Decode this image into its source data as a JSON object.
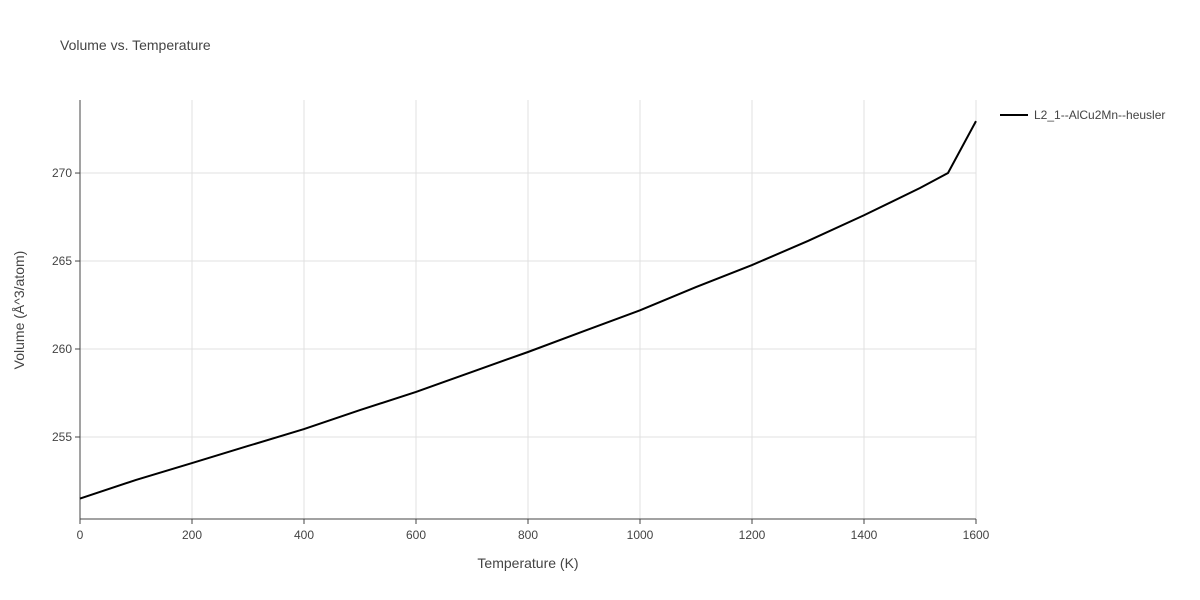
{
  "chart_data": {
    "type": "line",
    "title": "Volume vs. Temperature",
    "x_label": "Temperature (K)",
    "y_label": "Volume (Å^3/atom)",
    "x": [
      0,
      100,
      200,
      300,
      400,
      500,
      600,
      700,
      800,
      900,
      1000,
      1100,
      1200,
      1300,
      1400,
      1500,
      1550,
      1600
    ],
    "series": [
      {
        "name": "L2_1--AlCu2Mn--heusler",
        "color": "#000000",
        "values": [
          251.5,
          252.56,
          253.52,
          254.49,
          255.45,
          256.53,
          257.56,
          258.7,
          259.83,
          261.02,
          262.2,
          263.52,
          264.77,
          266.14,
          267.6,
          269.15,
          270.0,
          272.95
        ]
      }
    ],
    "xlim": [
      0,
      1600
    ],
    "xticks": [
      0,
      200,
      400,
      600,
      800,
      1000,
      1200,
      1400,
      1600
    ],
    "ylim": [
      250.34,
      274.15
    ],
    "yticks": [
      255,
      260,
      265,
      270
    ],
    "grid": true,
    "legend": "right"
  }
}
